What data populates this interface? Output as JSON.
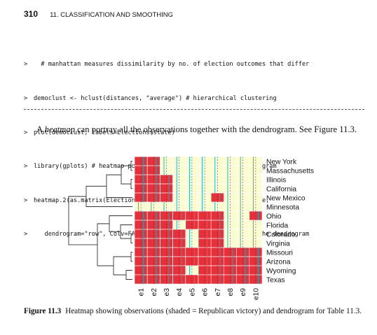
{
  "header": {
    "page_number": "310",
    "chapter_title": "11. CLASSIFICATION AND SMOOTHING"
  },
  "code": {
    "lines": [
      {
        "prompt": ">",
        "text": "  # manhattan measures dissimilarity by no. of election outcomes that differ"
      },
      {
        "prompt": ">",
        "text": "democlust <- hclust(distances, \"average\") # hierarchical clustering"
      },
      {
        "prompt": ">",
        "text": "plot(democlust, labels=Elections$state)"
      },
      {
        "prompt": ">",
        "text": "library(gplots) # heatmap portrays observations with the dendrogram"
      },
      {
        "prompt": ">",
        "text": "heatmap.2(as.matrix(Elections[, 3:12]), labRow = Elections$state,"
      },
      {
        "prompt": ">",
        "text": "   dendrogram=\"row\", Colv=FALSE) # portrays observations with the dendrogram"
      }
    ]
  },
  "body": {
    "intro": "A ",
    "emph": "heatmap",
    "rest": " can portray all the observations together with the dendrogram. See Figure 11.3."
  },
  "figure": {
    "rows": [
      "New York",
      "Massachusetts",
      "Illinois",
      "California",
      "New Mexico",
      "Minnesota",
      "Ohio",
      "Florida",
      "Colorado",
      "Virginia",
      "Missouri",
      "Arizona",
      "Wyoming",
      "Texas"
    ],
    "columns": [
      "e1",
      "e2",
      "e3",
      "e4",
      "e5",
      "e6",
      "e7",
      "e8",
      "e9",
      "e10"
    ],
    "matrix": [
      [
        1,
        1,
        0,
        0,
        0,
        0,
        0,
        0,
        0,
        0
      ],
      [
        1,
        1,
        0,
        0,
        0,
        0,
        0,
        0,
        0,
        0
      ],
      [
        1,
        1,
        1,
        0,
        0,
        0,
        0,
        0,
        0,
        0
      ],
      [
        1,
        1,
        1,
        0,
        0,
        0,
        0,
        0,
        0,
        0
      ],
      [
        1,
        1,
        1,
        0,
        0,
        0,
        1,
        0,
        0,
        0
      ],
      [
        0,
        0,
        0,
        0,
        0,
        0,
        0,
        0,
        0,
        0
      ],
      [
        1,
        1,
        1,
        1,
        1,
        1,
        1,
        0,
        0,
        1
      ],
      [
        1,
        1,
        1,
        0,
        1,
        1,
        1,
        0,
        0,
        0
      ],
      [
        1,
        1,
        1,
        1,
        0,
        1,
        1,
        0,
        0,
        0
      ],
      [
        1,
        1,
        1,
        1,
        0,
        1,
        1,
        0,
        0,
        0
      ],
      [
        1,
        1,
        1,
        1,
        1,
        1,
        1,
        1,
        1,
        1
      ],
      [
        1,
        1,
        1,
        1,
        1,
        1,
        1,
        1,
        1,
        1
      ],
      [
        1,
        1,
        1,
        1,
        0,
        1,
        1,
        1,
        1,
        1
      ],
      [
        1,
        1,
        1,
        1,
        1,
        1,
        1,
        1,
        1,
        1
      ]
    ],
    "colors": {
      "republican": "#e8303a",
      "other": "#fbfbd2",
      "trace": "#00b7c9",
      "line": "#333333"
    }
  },
  "caption": {
    "label": "Figure 11.3",
    "text": "Heatmap showing observations (shaded = Republican victory) and dendrogram for Table 11.3."
  }
}
